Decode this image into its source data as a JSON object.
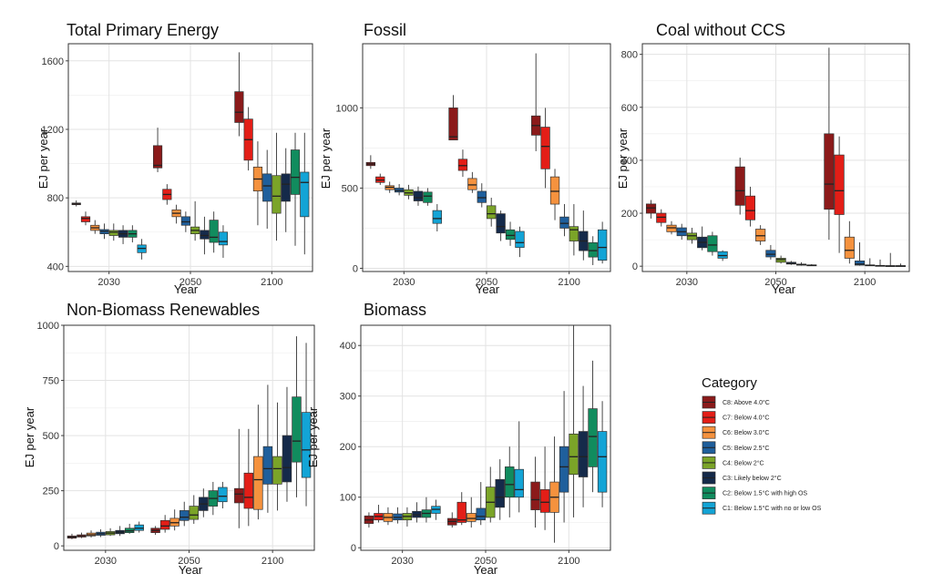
{
  "categories": [
    {
      "code": "C8",
      "label": "C8: Above 4.0°C",
      "color": "#8b1a1a"
    },
    {
      "code": "C7",
      "label": "C7: Below 4.0°C",
      "color": "#e31e17"
    },
    {
      "code": "C6",
      "label": "C6: Below 3.0°C",
      "color": "#f5923e"
    },
    {
      "code": "C5",
      "label": "C5: Below 2.5°C",
      "color": "#1f5f9c"
    },
    {
      "code": "C4",
      "label": "C4: Below 2°C",
      "color": "#7ba428"
    },
    {
      "code": "C3",
      "label": "C3: Likely below 2°C",
      "color": "#152a4a"
    },
    {
      "code": "C2",
      "label": "C2: Below 1.5°C with high OS",
      "color": "#118c5e"
    },
    {
      "code": "C1",
      "label": "C1: Below 1.5°C with no or low OS",
      "color": "#13a4d6"
    }
  ],
  "legend": {
    "title": "Category"
  },
  "chart_data": [
    {
      "type": "box",
      "title": "Total Primary Energy",
      "xlabel": "Year",
      "ylabel": "EJ per year",
      "years": [
        "2030",
        "2050",
        "2100"
      ],
      "ylim": [
        370,
        1700
      ],
      "yticks": [
        400,
        800,
        1200,
        1600
      ],
      "boxes": [
        [
          [
            750,
            760,
            765,
            770,
            785
          ],
          [
            640,
            660,
            680,
            690,
            720
          ],
          [
            590,
            610,
            625,
            640,
            670
          ],
          [
            560,
            590,
            605,
            615,
            650
          ],
          [
            550,
            580,
            600,
            610,
            650
          ],
          [
            530,
            570,
            590,
            610,
            640
          ],
          [
            540,
            570,
            590,
            610,
            640
          ],
          [
            440,
            480,
            505,
            525,
            560
          ]
        ],
        [
          [
            950,
            975,
            990,
            1105,
            1210
          ],
          [
            760,
            790,
            820,
            850,
            880
          ],
          [
            650,
            690,
            710,
            730,
            760
          ],
          [
            600,
            640,
            660,
            690,
            720
          ],
          [
            550,
            590,
            610,
            630,
            780
          ],
          [
            470,
            560,
            580,
            610,
            690
          ],
          [
            480,
            540,
            570,
            670,
            720
          ],
          [
            450,
            525,
            545,
            600,
            640
          ]
        ],
        [
          [
            1160,
            1240,
            1300,
            1420,
            1650
          ],
          [
            960,
            1020,
            1140,
            1260,
            1330
          ],
          [
            640,
            840,
            910,
            980,
            1130
          ],
          [
            620,
            780,
            870,
            940,
            1080
          ],
          [
            550,
            710,
            810,
            930,
            1180
          ],
          [
            600,
            780,
            880,
            940,
            1090
          ],
          [
            520,
            820,
            920,
            1080,
            1180
          ],
          [
            470,
            690,
            890,
            950,
            1180
          ]
        ]
      ]
    },
    {
      "type": "box",
      "title": "Fossil",
      "xlabel": "Year",
      "ylabel": "EJ per year",
      "years": [
        "2030",
        "2050",
        "2100"
      ],
      "ylim": [
        -20,
        1400
      ],
      "yticks": [
        0,
        500,
        1000
      ],
      "boxes": [
        [
          [
            620,
            640,
            650,
            660,
            705
          ],
          [
            520,
            535,
            550,
            570,
            590
          ],
          [
            470,
            490,
            505,
            515,
            540
          ],
          [
            455,
            475,
            485,
            500,
            525
          ],
          [
            430,
            455,
            470,
            490,
            520
          ],
          [
            390,
            420,
            440,
            480,
            510
          ],
          [
            390,
            410,
            450,
            475,
            500
          ],
          [
            230,
            280,
            310,
            360,
            400
          ]
        ],
        [
          [
            800,
            800,
            820,
            1000,
            1080
          ],
          [
            570,
            610,
            640,
            680,
            740
          ],
          [
            470,
            490,
            520,
            560,
            600
          ],
          [
            380,
            410,
            440,
            480,
            530
          ],
          [
            260,
            310,
            340,
            390,
            440
          ],
          [
            170,
            220,
            260,
            340,
            360
          ],
          [
            140,
            180,
            205,
            240,
            290
          ],
          [
            70,
            130,
            160,
            230,
            260
          ]
        ],
        [
          [
            730,
            830,
            890,
            950,
            1340
          ],
          [
            500,
            620,
            760,
            880,
            1000
          ],
          [
            300,
            400,
            480,
            570,
            620
          ],
          [
            200,
            250,
            280,
            320,
            400
          ],
          [
            80,
            170,
            240,
            260,
            400
          ],
          [
            50,
            110,
            170,
            230,
            360
          ],
          [
            20,
            70,
            110,
            160,
            200
          ],
          [
            30,
            50,
            130,
            240,
            290
          ]
        ]
      ]
    },
    {
      "type": "box",
      "title": "Coal without CCS",
      "xlabel": "Year",
      "ylabel": "EJ per year",
      "years": [
        "2030",
        "2050",
        "2100"
      ],
      "ylim": [
        -20,
        840
      ],
      "yticks": [
        0,
        200,
        400,
        600,
        800
      ],
      "boxes": [
        [
          [
            180,
            200,
            220,
            235,
            250
          ],
          [
            150,
            165,
            185,
            200,
            215
          ],
          [
            120,
            130,
            145,
            155,
            170
          ],
          [
            100,
            115,
            130,
            145,
            160
          ],
          [
            85,
            100,
            115,
            125,
            145
          ],
          [
            60,
            70,
            90,
            110,
            150
          ],
          [
            40,
            55,
            80,
            115,
            130
          ],
          [
            20,
            30,
            40,
            55,
            60
          ]
        ],
        [
          [
            195,
            230,
            285,
            375,
            410
          ],
          [
            150,
            175,
            210,
            265,
            300
          ],
          [
            80,
            95,
            115,
            140,
            155
          ],
          [
            25,
            35,
            45,
            60,
            80
          ],
          [
            10,
            15,
            25,
            30,
            40
          ],
          [
            5,
            8,
            10,
            15,
            20
          ],
          [
            2,
            4,
            6,
            8,
            15
          ],
          [
            1,
            2,
            3,
            5,
            8
          ]
        ],
        [
          [
            100,
            215,
            310,
            500,
            825
          ],
          [
            50,
            195,
            285,
            420,
            490
          ],
          [
            10,
            30,
            60,
            110,
            170
          ],
          [
            2,
            4,
            8,
            20,
            90
          ],
          [
            1,
            2,
            3,
            5,
            30
          ],
          [
            0,
            1,
            2,
            3,
            25
          ],
          [
            0,
            0,
            1,
            2,
            50
          ],
          [
            0,
            0,
            1,
            2,
            10
          ]
        ]
      ]
    },
    {
      "type": "box",
      "title": "Non-Biomass Renewables",
      "xlabel": "Year",
      "ylabel": "EJ per year",
      "years": [
        "2030",
        "2050",
        "2100"
      ],
      "ylim": [
        -20,
        1000
      ],
      "yticks": [
        0,
        250,
        500,
        750,
        1000
      ],
      "boxes": [
        [
          [
            30,
            35,
            40,
            45,
            55
          ],
          [
            35,
            40,
            45,
            50,
            60
          ],
          [
            38,
            45,
            50,
            58,
            70
          ],
          [
            40,
            48,
            55,
            62,
            75
          ],
          [
            45,
            50,
            58,
            65,
            80
          ],
          [
            45,
            55,
            62,
            70,
            90
          ],
          [
            55,
            60,
            68,
            80,
            100
          ],
          [
            60,
            70,
            80,
            95,
            110
          ]
        ],
        [
          [
            50,
            60,
            70,
            80,
            90
          ],
          [
            60,
            75,
            90,
            115,
            140
          ],
          [
            70,
            90,
            105,
            125,
            165
          ],
          [
            90,
            115,
            130,
            160,
            200
          ],
          [
            100,
            120,
            140,
            180,
            230
          ],
          [
            130,
            160,
            190,
            220,
            260
          ],
          [
            140,
            180,
            215,
            250,
            290
          ],
          [
            170,
            200,
            225,
            265,
            290
          ]
        ],
        [
          [
            80,
            195,
            235,
            260,
            530
          ],
          [
            90,
            170,
            220,
            330,
            530
          ],
          [
            120,
            165,
            300,
            405,
            640
          ],
          [
            150,
            280,
            350,
            450,
            730
          ],
          [
            160,
            280,
            350,
            405,
            650
          ],
          [
            200,
            290,
            355,
            500,
            720
          ],
          [
            220,
            380,
            475,
            675,
            950
          ],
          [
            180,
            310,
            435,
            605,
            920
          ]
        ]
      ]
    },
    {
      "type": "box",
      "title": "Biomass",
      "xlabel": "Year",
      "ylabel": "EJ per year",
      "years": [
        "2030",
        "2050",
        "2100"
      ],
      "ylim": [
        -5,
        440
      ],
      "yticks": [
        0,
        100,
        200,
        300,
        400
      ],
      "boxes": [
        [
          [
            40,
            48,
            55,
            63,
            70
          ],
          [
            50,
            55,
            62,
            68,
            85
          ],
          [
            45,
            52,
            60,
            68,
            80
          ],
          [
            48,
            55,
            60,
            67,
            80
          ],
          [
            42,
            55,
            62,
            68,
            80
          ],
          [
            50,
            60,
            65,
            72,
            90
          ],
          [
            50,
            60,
            68,
            75,
            100
          ],
          [
            55,
            68,
            76,
            82,
            95
          ]
        ],
        [
          [
            40,
            45,
            52,
            58,
            70
          ],
          [
            45,
            50,
            55,
            90,
            110
          ],
          [
            40,
            52,
            58,
            68,
            100
          ],
          [
            45,
            55,
            62,
            78,
            130
          ],
          [
            50,
            60,
            90,
            120,
            160
          ],
          [
            55,
            80,
            100,
            135,
            175
          ],
          [
            60,
            100,
            125,
            160,
            200
          ],
          [
            70,
            100,
            115,
            155,
            250
          ]
        ],
        [
          [
            40,
            75,
            95,
            130,
            180
          ],
          [
            35,
            70,
            90,
            115,
            200
          ],
          [
            10,
            70,
            100,
            130,
            220
          ],
          [
            50,
            110,
            160,
            200,
            310
          ],
          [
            60,
            145,
            180,
            225,
            440
          ],
          [
            80,
            140,
            180,
            230,
            320
          ],
          [
            110,
            160,
            220,
            275,
            370
          ],
          [
            80,
            110,
            180,
            230,
            290
          ]
        ]
      ]
    }
  ]
}
